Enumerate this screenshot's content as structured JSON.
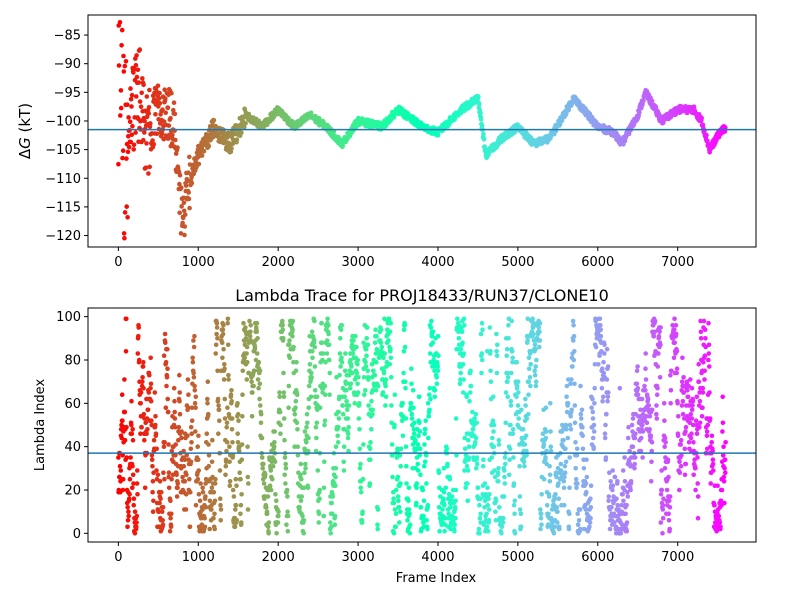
{
  "chart_data": [
    {
      "type": "scatter",
      "title": "",
      "xlabel": "",
      "ylabel_prefix": "Δ",
      "ylabel_symbol": "G",
      "ylabel_suffix": " (kT)",
      "xlim": [
        -380,
        7980
      ],
      "ylim": [
        -122,
        -81.5
      ],
      "xticks": [
        0,
        1000,
        2000,
        3000,
        4000,
        5000,
        6000,
        7000
      ],
      "yticks": [
        -120,
        -115,
        -110,
        -105,
        -100,
        -95,
        -90,
        -85
      ],
      "hline": -101.5,
      "hline_color": "#1f77b4",
      "colormap": "rainbow (red at start of trajectory, violet at end)",
      "n_frames": 7600,
      "series": [
        {
          "points_approx": [
            [
              0,
              -90
            ],
            [
              30,
              -82
            ],
            [
              60,
              -95
            ],
            [
              90,
              -110
            ],
            [
              150,
              -100
            ],
            [
              250,
              -95
            ],
            [
              350,
              -102
            ],
            [
              500,
              -98
            ],
            [
              700,
              -100
            ],
            [
              800,
              -118
            ],
            [
              900,
              -110
            ],
            [
              1000,
              -106
            ],
            [
              1200,
              -101
            ],
            [
              1400,
              -104
            ],
            [
              1600,
              -99
            ],
            [
              1800,
              -101
            ],
            [
              2000,
              -98
            ],
            [
              2200,
              -101
            ],
            [
              2400,
              -99
            ],
            [
              2600,
              -101
            ],
            [
              2800,
              -104
            ],
            [
              3000,
              -100
            ],
            [
              3300,
              -101
            ],
            [
              3500,
              -98
            ],
            [
              3800,
              -101
            ],
            [
              4000,
              -102
            ],
            [
              4300,
              -98
            ],
            [
              4500,
              -96
            ],
            [
              4600,
              -106
            ],
            [
              4800,
              -103
            ],
            [
              5000,
              -101
            ],
            [
              5200,
              -104
            ],
            [
              5400,
              -103
            ],
            [
              5700,
              -96
            ],
            [
              6000,
              -101
            ],
            [
              6200,
              -102
            ],
            [
              6300,
              -104
            ],
            [
              6500,
              -99
            ],
            [
              6600,
              -95
            ],
            [
              6800,
              -100
            ],
            [
              7000,
              -98
            ],
            [
              7200,
              -98
            ],
            [
              7300,
              -100
            ],
            [
              7400,
              -105
            ],
            [
              7550,
              -101.5
            ]
          ]
        }
      ]
    },
    {
      "type": "scatter",
      "title": "Lambda Trace for PROJ18433/RUN37/CLONE10",
      "xlabel": "Frame Index",
      "ylabel": "Lambda Index",
      "xlim": [
        -380,
        7980
      ],
      "ylim": [
        -4,
        104
      ],
      "xticks": [
        0,
        1000,
        2000,
        3000,
        4000,
        5000,
        6000,
        7000
      ],
      "yticks": [
        0,
        20,
        40,
        60,
        80,
        100
      ],
      "hline": 37,
      "hline_color": "#1f77b4",
      "colormap": "rainbow (red at start of trajectory, violet at end)",
      "n_frames": 7600,
      "series": [
        {
          "distribution": "lambda index values spread uniformly between 0 and 99 over all frames"
        }
      ]
    }
  ]
}
